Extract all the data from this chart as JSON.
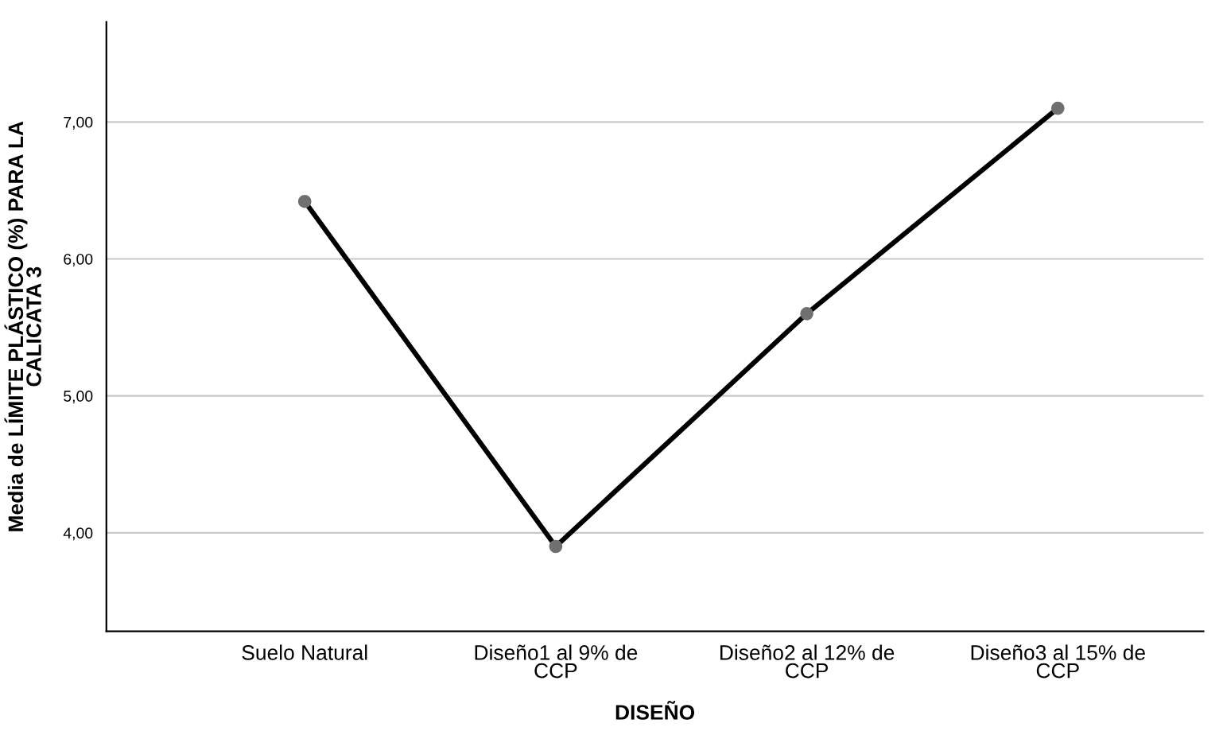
{
  "chart_data": {
    "type": "line",
    "xlabel": "DISEÑO",
    "ylabel": "Media de LÍMITE PLÁSTICO (%) PARA LA\nCALICATA 3",
    "categories": [
      "Suelo Natural",
      "Diseño1 al 9% de\nCCP",
      "Diseño2 al 12% de\nCCP",
      "Diseño3 al 15% de\nCCP"
    ],
    "series": [
      {
        "color": "#000000",
        "values": [
          6.42,
          3.9,
          5.6,
          7.1
        ]
      }
    ],
    "ylim": [
      3.28,
      7.73
    ],
    "yticks": [
      {
        "value": 4,
        "label": "4,00"
      },
      {
        "value": 5,
        "label": "5,00"
      },
      {
        "value": 6,
        "label": "6,00"
      },
      {
        "value": 7,
        "label": "7,00"
      }
    ],
    "grid": "y",
    "marker": "circle",
    "line_style": "solid"
  }
}
